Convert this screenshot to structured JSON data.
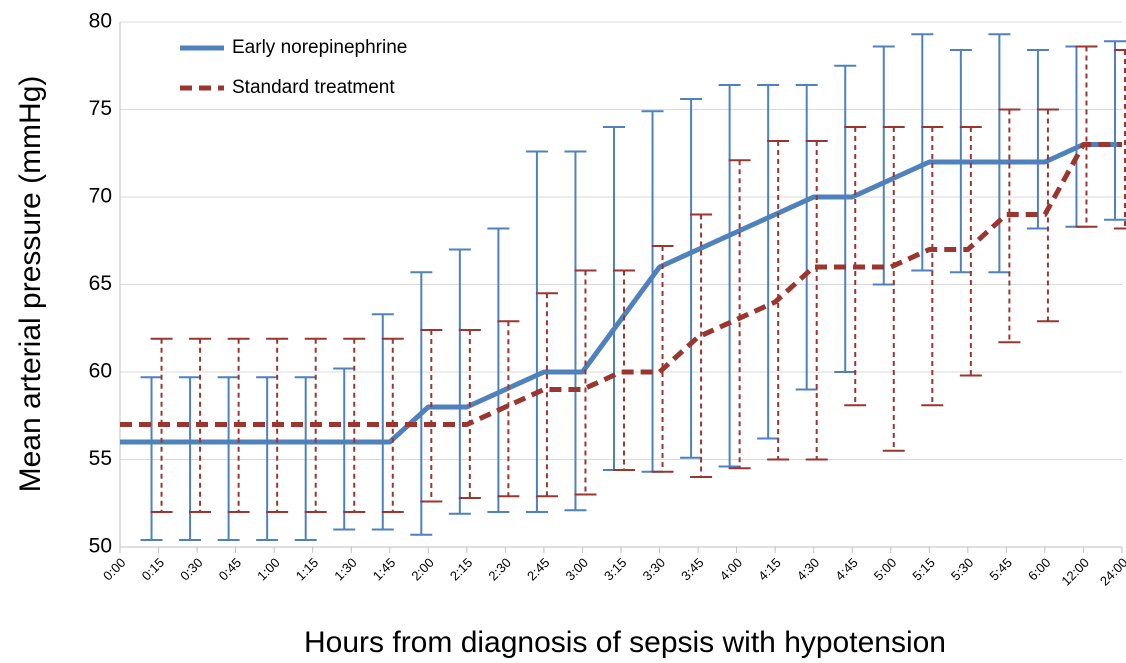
{
  "chart_data": {
    "type": "line",
    "y_label": "Mean arterial pressure (mmHg)",
    "x_label": "Hours from diagnosis of sepsis with hypotension",
    "categories": [
      "0:00",
      "0:15",
      "0:30",
      "0:45",
      "1:00",
      "1:15",
      "1:30",
      "1:45",
      "2:00",
      "2:15",
      "2:30",
      "2:45",
      "3:00",
      "3:15",
      "3:30",
      "3:45",
      "4:00",
      "4:15",
      "4:30",
      "4:45",
      "5:00",
      "5:15",
      "5:30",
      "5:45",
      "6:00",
      "12:00",
      "24:00"
    ],
    "ylim": [
      50,
      80
    ],
    "yticks": [
      50,
      55,
      60,
      65,
      70,
      75,
      80
    ],
    "grid": true,
    "series": [
      {
        "name": "Early norepinephrine",
        "color": "#4f81bd",
        "dash": false,
        "values": [
          56,
          56,
          56,
          56,
          56,
          56,
          56,
          56,
          58,
          58,
          59,
          60,
          60,
          63,
          66,
          67,
          68,
          69,
          70,
          70,
          71,
          72,
          72,
          72,
          72,
          73,
          73
        ],
        "err_high": [
          null,
          59.7,
          59.7,
          59.7,
          59.7,
          59.7,
          60.2,
          63.3,
          65.7,
          67.0,
          68.2,
          72.6,
          72.6,
          74.0,
          74.9,
          75.6,
          76.4,
          76.4,
          76.4,
          77.5,
          78.6,
          79.3,
          78.4,
          79.3,
          78.4,
          78.6,
          78.9
        ],
        "err_low": [
          null,
          50.4,
          50.4,
          50.4,
          50.4,
          50.4,
          51.0,
          51.0,
          50.7,
          51.9,
          52.0,
          52.0,
          52.1,
          54.4,
          54.3,
          55.1,
          54.6,
          56.2,
          59.0,
          60.0,
          65.0,
          65.8,
          65.7,
          65.7,
          68.2,
          68.3,
          68.7
        ]
      },
      {
        "name": "Standard treatment",
        "color": "#9b3530",
        "dash": true,
        "values": [
          57,
          57,
          57,
          57,
          57,
          57,
          57,
          57,
          57,
          57,
          58,
          59,
          59,
          60,
          60,
          62,
          63,
          64,
          66,
          66,
          66,
          67,
          67,
          69,
          69,
          73,
          73
        ],
        "err_high": [
          null,
          61.9,
          61.9,
          61.9,
          61.9,
          61.9,
          61.9,
          61.9,
          62.4,
          62.4,
          62.9,
          64.5,
          65.8,
          65.8,
          67.2,
          69.0,
          72.1,
          73.2,
          73.2,
          74.0,
          74.0,
          74.0,
          74.0,
          75.0,
          75.0,
          78.6,
          78.4
        ],
        "err_low": [
          null,
          52.0,
          52.0,
          52.0,
          52.0,
          52.0,
          52.0,
          52.0,
          52.6,
          52.8,
          52.9,
          52.9,
          53.0,
          54.4,
          54.3,
          54.0,
          54.5,
          55.0,
          55.0,
          58.1,
          55.5,
          58.1,
          59.8,
          61.7,
          62.9,
          68.3,
          68.2
        ]
      }
    ]
  }
}
